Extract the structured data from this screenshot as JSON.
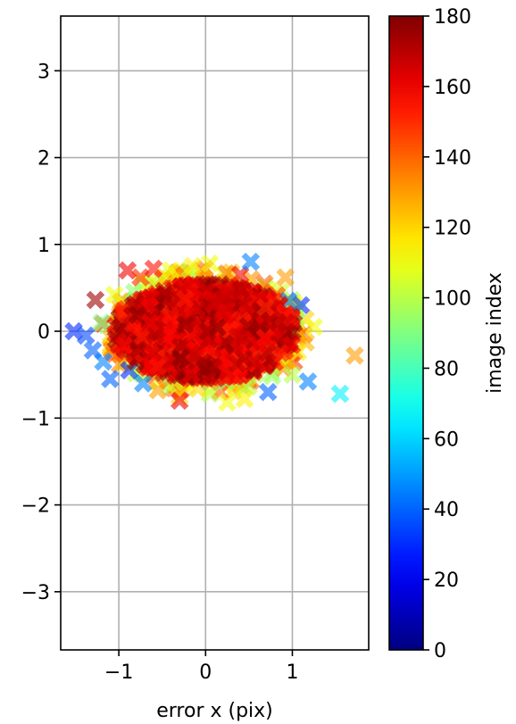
{
  "chart_data": {
    "type": "scatter",
    "title": "",
    "xlabel": "error x (pix)",
    "ylabel": "",
    "xlim": [
      -1.67,
      1.88
    ],
    "ylim": [
      -3.67,
      3.63
    ],
    "xticks": [
      -1,
      0,
      1
    ],
    "xtick_labels": [
      "−1",
      "0",
      "1"
    ],
    "yticks": [
      -3,
      -2,
      -1,
      0,
      1,
      2,
      3
    ],
    "ytick_labels": [
      "−3",
      "−2",
      "−1",
      "0",
      "1",
      "2",
      "3"
    ],
    "grid": true,
    "marker": "X",
    "colormap": "jet",
    "colorbar": {
      "label": "image index",
      "range": [
        0,
        180
      ],
      "ticks": [
        0,
        20,
        40,
        60,
        80,
        100,
        120,
        140,
        160,
        180
      ],
      "tick_labels": [
        "0",
        "20",
        "40",
        "60",
        "80",
        "100",
        "120",
        "140",
        "160",
        "180"
      ]
    },
    "points": [
      {
        "x": -1.52,
        "y": 0.0,
        "c": 30
      },
      {
        "x": -1.38,
        "y": -0.05,
        "c": 35
      },
      {
        "x": -1.3,
        "y": -0.22,
        "c": 40
      },
      {
        "x": -1.27,
        "y": 0.36,
        "c": 175
      },
      {
        "x": -1.2,
        "y": 0.1,
        "c": 90
      },
      {
        "x": -1.18,
        "y": -0.35,
        "c": 45
      },
      {
        "x": -1.1,
        "y": -0.55,
        "c": 40
      },
      {
        "x": -1.05,
        "y": 0.42,
        "c": 110
      },
      {
        "x": -0.9,
        "y": 0.7,
        "c": 160
      },
      {
        "x": -0.88,
        "y": -0.45,
        "c": 30
      },
      {
        "x": -0.75,
        "y": 0.62,
        "c": 150
      },
      {
        "x": -0.72,
        "y": -0.6,
        "c": 45
      },
      {
        "x": -0.6,
        "y": 0.72,
        "c": 155
      },
      {
        "x": -0.55,
        "y": -0.68,
        "c": 130
      },
      {
        "x": -0.4,
        "y": 0.7,
        "c": 110
      },
      {
        "x": -0.3,
        "y": -0.75,
        "c": 120
      },
      {
        "x": -0.3,
        "y": -0.8,
        "c": 160
      },
      {
        "x": -0.15,
        "y": 0.75,
        "c": 115
      },
      {
        "x": 0.05,
        "y": 0.78,
        "c": 110
      },
      {
        "x": 0.05,
        "y": -0.72,
        "c": 100
      },
      {
        "x": 0.25,
        "y": -0.82,
        "c": 110
      },
      {
        "x": 0.4,
        "y": 0.65,
        "c": 160
      },
      {
        "x": 0.52,
        "y": 0.8,
        "c": 45
      },
      {
        "x": 0.45,
        "y": -0.78,
        "c": 115
      },
      {
        "x": 0.68,
        "y": 0.55,
        "c": 140
      },
      {
        "x": 0.72,
        "y": -0.7,
        "c": 40
      },
      {
        "x": 0.92,
        "y": 0.62,
        "c": 130
      },
      {
        "x": 0.95,
        "y": 0.35,
        "c": 40
      },
      {
        "x": 1.0,
        "y": -0.5,
        "c": 100
      },
      {
        "x": 1.1,
        "y": 0.3,
        "c": 30
      },
      {
        "x": 1.18,
        "y": -0.58,
        "c": 45
      },
      {
        "x": 1.25,
        "y": 0.05,
        "c": 110
      },
      {
        "x": 1.55,
        "y": -0.72,
        "c": 65
      },
      {
        "x": 1.72,
        "y": -0.28,
        "c": 130
      }
    ],
    "dense_core": {
      "center": [
        0.0,
        0.0
      ],
      "x_halfwidth": 1.05,
      "y_halfwidth": 0.55,
      "c_range": [
        150,
        180
      ]
    },
    "halo": {
      "x_halfwidth": 1.2,
      "y_halfwidth": 0.72,
      "c_range": [
        90,
        150
      ]
    }
  }
}
